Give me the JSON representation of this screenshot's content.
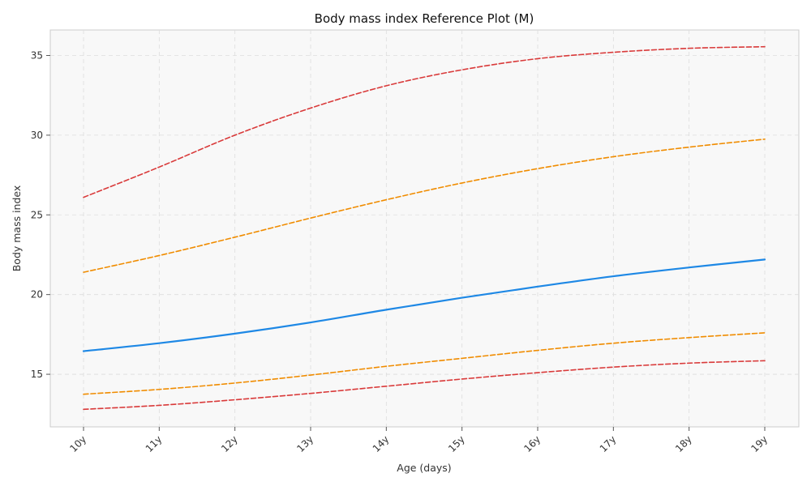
{
  "chart_data": {
    "type": "line",
    "title": "Body mass index Reference Plot (M)",
    "xlabel": "Age (days)",
    "ylabel": "Body mass index",
    "x_ticks": [
      "10y",
      "11y",
      "12y",
      "13y",
      "14y",
      "15y",
      "16y",
      "17y",
      "18y",
      "19y"
    ],
    "y_ticks": [
      15,
      20,
      25,
      30,
      35
    ],
    "xlim": [
      "10y",
      "19y"
    ],
    "ylim": [
      11.7,
      36.6
    ],
    "grid": true,
    "x": [
      10,
      11,
      12,
      13,
      14,
      15,
      16,
      17,
      18,
      19
    ],
    "series": [
      {
        "values": [
          26.1,
          28.0,
          30.0,
          31.7,
          33.1,
          34.1,
          34.8,
          35.2,
          35.45,
          35.55
        ],
        "color": "#d93a3a",
        "style": "dashed"
      },
      {
        "values": [
          21.4,
          22.45,
          23.6,
          24.8,
          25.95,
          27.0,
          27.9,
          28.65,
          29.25,
          29.75
        ],
        "color": "#f08c00",
        "style": "dashed"
      },
      {
        "values": [
          16.45,
          16.95,
          17.55,
          18.25,
          19.05,
          19.8,
          20.5,
          21.15,
          21.7,
          22.2
        ],
        "color": "#1e88e5",
        "style": "solid"
      },
      {
        "values": [
          13.75,
          14.05,
          14.45,
          14.95,
          15.5,
          16.0,
          16.5,
          16.95,
          17.3,
          17.6
        ],
        "color": "#f08c00",
        "style": "dashed"
      },
      {
        "values": [
          12.8,
          13.05,
          13.4,
          13.8,
          14.25,
          14.7,
          15.1,
          15.45,
          15.7,
          15.85
        ],
        "color": "#d93a3a",
        "style": "dashed"
      }
    ]
  }
}
